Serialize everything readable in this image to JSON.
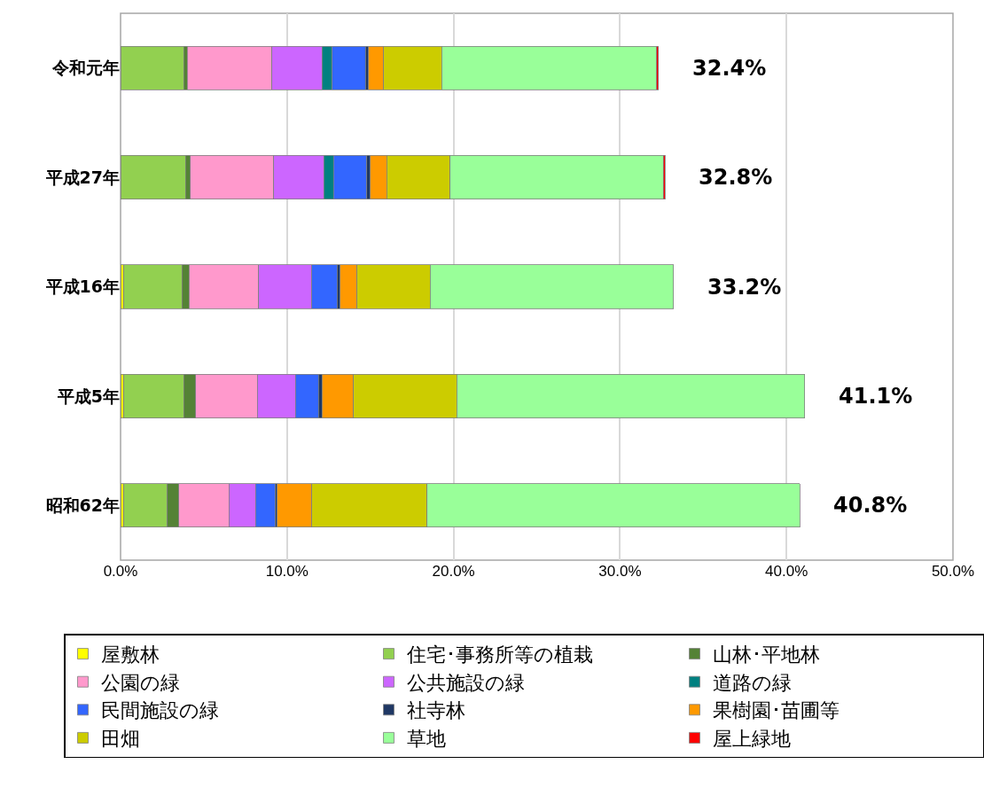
{
  "chart_data": {
    "type": "bar",
    "orientation": "horizontal",
    "stacked": true,
    "categories": [
      "令和元年",
      "平成27年",
      "平成16年",
      "平成5年",
      "昭和62年"
    ],
    "series": [
      {
        "name": "屋敷林",
        "color": "#ffff00",
        "values": [
          null,
          null,
          0.2,
          0.2,
          0.2
        ]
      },
      {
        "name": "住宅･事務所等の植栽",
        "color": "#92d050",
        "values": [
          3.8,
          3.9,
          3.5,
          3.6,
          2.6
        ]
      },
      {
        "name": "山林･平地林",
        "color": "#548235",
        "values": [
          0.2,
          0.3,
          0.4,
          0.7,
          0.7
        ]
      },
      {
        "name": "公園の緑",
        "color": "#ff99cc",
        "values": [
          5.1,
          5.0,
          4.2,
          3.7,
          3.0
        ]
      },
      {
        "name": "公共施設の緑",
        "color": "#cc66ff",
        "values": [
          3.0,
          3.0,
          3.2,
          2.3,
          1.6
        ]
      },
      {
        "name": "道路の緑",
        "color": "#008080",
        "values": [
          0.6,
          0.6,
          null,
          null,
          null
        ]
      },
      {
        "name": "民間施設の緑",
        "color": "#3366ff",
        "values": [
          2.0,
          2.0,
          1.5,
          1.4,
          1.2
        ]
      },
      {
        "name": "社寺林",
        "color": "#1f3864",
        "values": [
          0.2,
          0.2,
          0.2,
          0.2,
          0.1
        ]
      },
      {
        "name": "果樹園･苗圃等",
        "color": "#ff9900",
        "values": [
          0.9,
          1.0,
          1.0,
          1.9,
          2.1
        ]
      },
      {
        "name": "田畑",
        "color": "#cccc00",
        "values": [
          3.5,
          3.8,
          4.4,
          6.2,
          6.9
        ]
      },
      {
        "name": "草地",
        "color": "#99ff99",
        "values": [
          12.9,
          12.8,
          14.6,
          20.9,
          22.4
        ]
      },
      {
        "name": "屋上緑地",
        "color": "#ff0000",
        "values": [
          0.1,
          0.1,
          null,
          null,
          null
        ]
      }
    ],
    "totals": [
      "32.4%",
      "32.8%",
      "33.2%",
      "41.1%",
      "40.8%"
    ],
    "xlim": [
      0,
      50
    ],
    "xticks": [
      {
        "value": 0,
        "label": "0.0%"
      },
      {
        "value": 10,
        "label": "10.0%"
      },
      {
        "value": 20,
        "label": "20.0%"
      },
      {
        "value": 30,
        "label": "30.0%"
      },
      {
        "value": 40,
        "label": "40.0%"
      },
      {
        "value": 50,
        "label": "50.0%"
      }
    ],
    "grid": "x",
    "legend": "bottom"
  }
}
